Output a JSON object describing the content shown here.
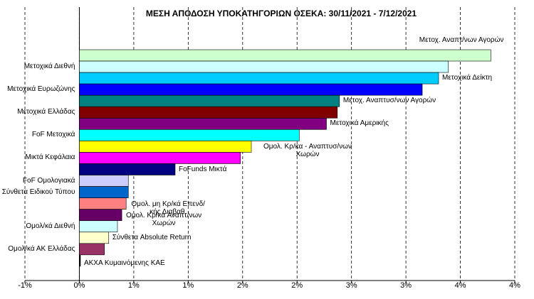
{
  "chart_data": {
    "type": "hbar",
    "title": "ΜΕΣΗ ΑΠΟΔΟΣΗ ΥΠΟΚΑΤΗΓΟΡΙΩΝ  ΟΣΕΚΑ: 30/11/2021 - 7/12/2021",
    "categories": [
      "Μετοχ. Αναπτ/νων Αγορών",
      "Μετοχικά Διεθνή",
      "Μετοχικά Δείκτη",
      "Μετοχικά Ευρωζώνης",
      "Μετοχ. Αναπτυσ/νων Αγορών",
      "Μετοχικά Ελλάδας",
      "Μετοχικά Αμερικής",
      "FoF Μετοχικά",
      "Ομολ. Κρ/κα - Αναπτυσ/νων Χωρών",
      "Μικτά Κεφάλαια",
      "FoFunds Μικτά",
      "FoF Ομολογιακά",
      "Σύνθετα Ειδικού Τύπου",
      "Ομολ. μη Κρ/κά Επενδ/κής Διαβαθ.",
      "Ομολ. Κρ/κά Αναπτ/νων Χωρών",
      "Ομολ/κά Διεθνή",
      "Σύνθετα Absolute Return",
      "Ομολ/κά ΑΚ Ελλάδας",
      "ΑΚΧΑ Κυμαινόμενης ΚΑΕ"
    ],
    "values": [
      3.78,
      3.39,
      3.3,
      3.15,
      2.39,
      2.37,
      2.27,
      2.02,
      1.58,
      1.48,
      0.88,
      0.45,
      0.45,
      0.43,
      0.39,
      0.35,
      0.27,
      0.23,
      0.01
    ],
    "colors": [
      "#ccffcc",
      "#ccffff",
      "#00ccff",
      "#0000ff",
      "#008080",
      "#800000",
      "#800080",
      "#00ffff",
      "#ffff00",
      "#ff00ff",
      "#000080",
      "#ccccff",
      "#0066cc",
      "#ff8080",
      "#660066",
      "#ccffff",
      "#ffffcc",
      "#993366",
      "#000000"
    ],
    "xlim": [
      -0.5,
      4.0
    ],
    "xticks": [
      {
        "value": -0.5,
        "label": "-1%"
      },
      {
        "value": 0,
        "label": "0%"
      },
      {
        "value": 0.5,
        "label": "1%"
      },
      {
        "value": 1.0,
        "label": "1%"
      },
      {
        "value": 1.5,
        "label": "2%"
      },
      {
        "value": 2.0,
        "label": "2%"
      },
      {
        "value": 2.5,
        "label": "3%"
      },
      {
        "value": 3.0,
        "label": "3%"
      },
      {
        "value": 3.5,
        "label": "4%"
      },
      {
        "value": 4.0,
        "label": "4%"
      }
    ],
    "grid": true
  }
}
